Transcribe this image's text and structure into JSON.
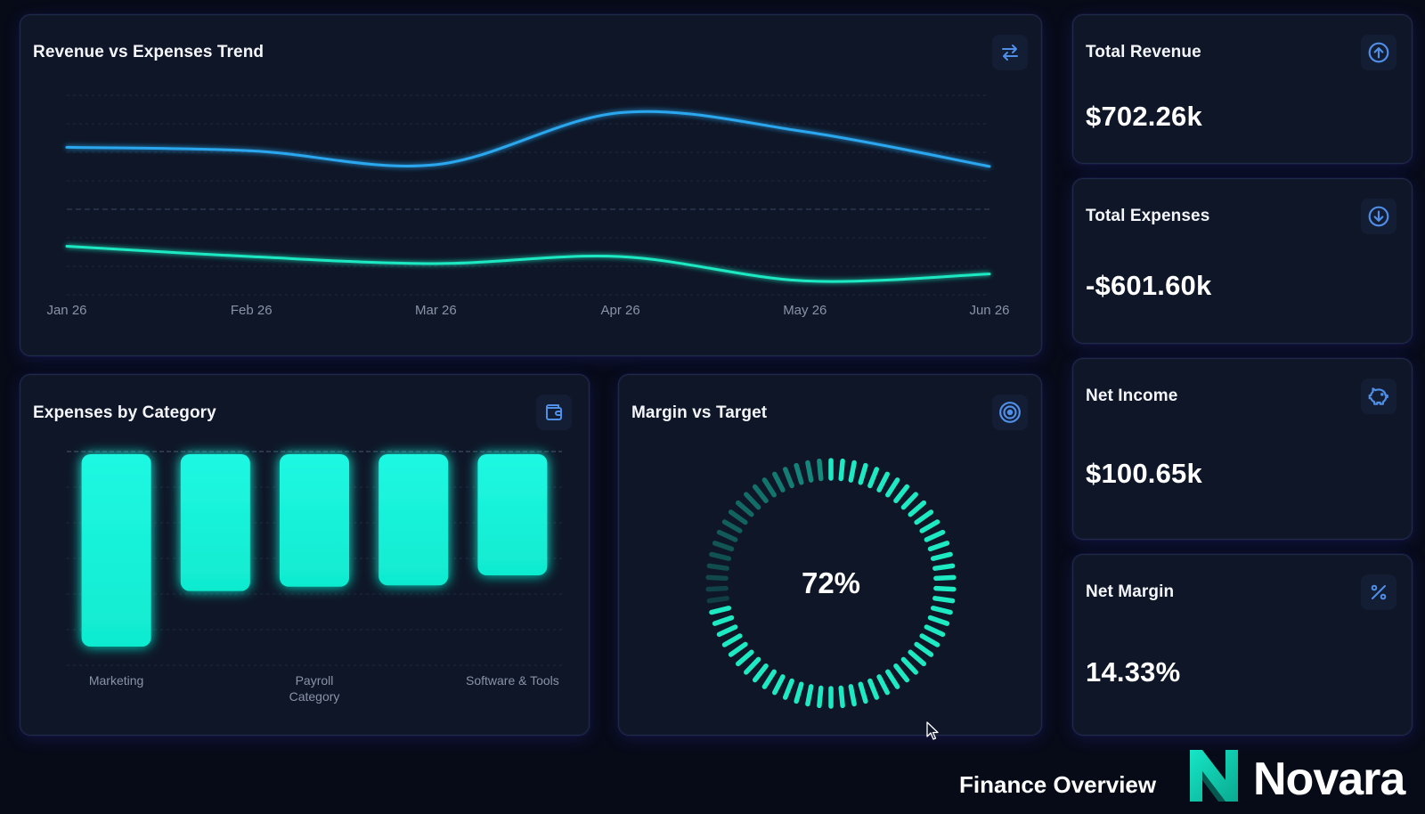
{
  "trend": {
    "title": "Revenue vs Expenses Trend",
    "icon": "swap-arrows-icon",
    "chart_data": {
      "type": "line",
      "x": [
        "Jan 26",
        "Feb 26",
        "Mar 26",
        "Apr 26",
        "May 26",
        "Jun 26"
      ],
      "series": [
        {
          "values": [
            125,
            123,
            115,
            145,
            134,
            114
          ],
          "color": "#2aa7ee"
        },
        {
          "values": [
            68,
            62,
            58,
            62,
            48,
            52
          ],
          "color": "#1de9c2"
        }
      ],
      "ylim": [
        40,
        155
      ],
      "grid": true
    }
  },
  "expenses": {
    "title": "Expenses by Category",
    "icon": "wallet-icon",
    "chart_data": {
      "type": "bar",
      "categories": [
        "Marketing",
        "",
        "Payroll",
        "",
        "Software & Tools"
      ],
      "values": [
        135,
        96,
        93,
        92,
        85
      ],
      "xlabel": "Category",
      "ylim": [
        0,
        150
      ],
      "grid": true,
      "color": "#17f3d8"
    }
  },
  "margin": {
    "title": "Margin vs Target",
    "icon": "target-icon",
    "value": 72,
    "label": "72%"
  },
  "kpis": [
    {
      "title": "Total Revenue",
      "value": "$702.26k",
      "icon": "arrow-up-circle-icon"
    },
    {
      "title": "Total Expenses",
      "value": "-$601.60k",
      "icon": "arrow-down-circle-icon"
    },
    {
      "title": "Net Income",
      "value": "$100.65k",
      "icon": "piggy-bank-icon"
    },
    {
      "title": "Net Margin",
      "value": "14.33%",
      "icon": "percent-icon"
    }
  ],
  "footer": {
    "title": "Finance Overview",
    "brand": "Novara"
  },
  "colors": {
    "accent_blue": "#2aa7ee",
    "accent_teal": "#1de9c2",
    "icon_blue": "#4f8fe8",
    "background": "#070b18",
    "card": "#0e1627"
  }
}
